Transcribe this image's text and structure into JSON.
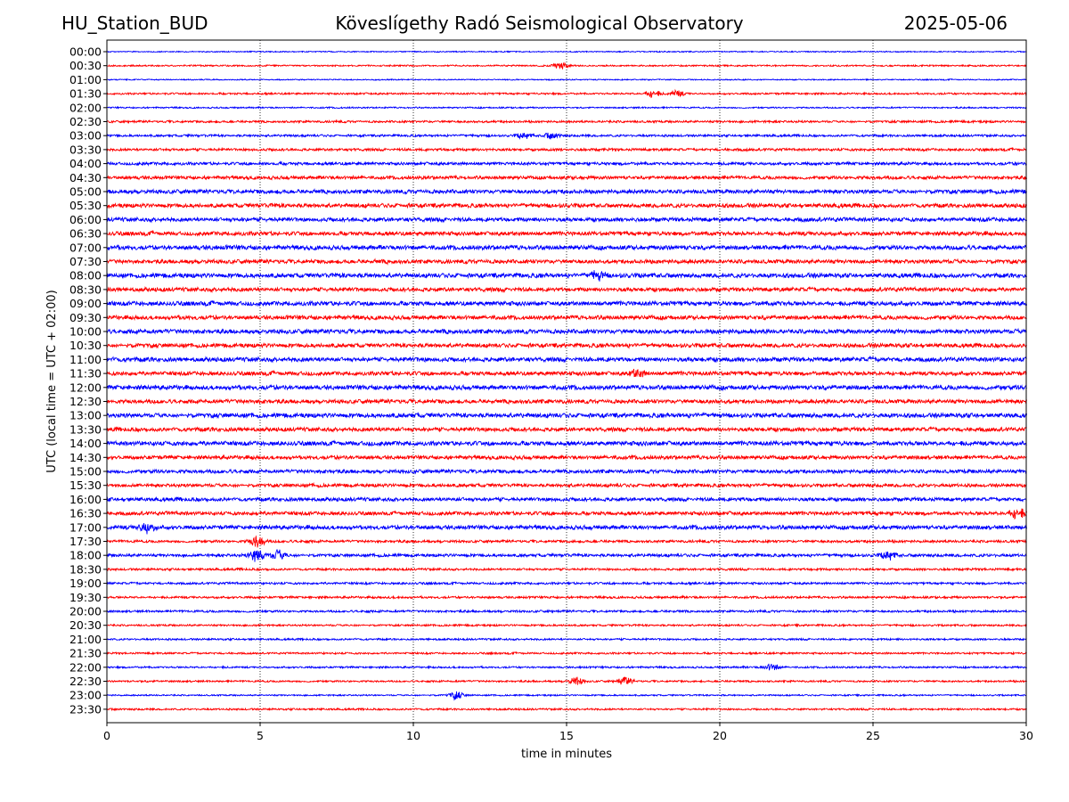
{
  "header": {
    "station": "HU_Station_BUD",
    "title": "Köveslígethy Radó Seismological Observatory",
    "date": "2025-05-06"
  },
  "chart_data": {
    "type": "line",
    "xlabel": "time in minutes",
    "ylabel": "UTC (local time = UTC + 02:00)",
    "xlim": [
      0,
      30
    ],
    "xticks": [
      0,
      5,
      10,
      15,
      20,
      25,
      30
    ],
    "grid": "vertical dotted lines at x ticks",
    "colors": {
      "even_rows": "#0000ff",
      "odd_rows": "#ff0000"
    },
    "rows": [
      {
        "label": "00:00",
        "color": "#0000ff",
        "amplitude": 0.15
      },
      {
        "label": "00:30",
        "color": "#ff0000",
        "amplitude": 0.2
      },
      {
        "label": "01:00",
        "color": "#0000ff",
        "amplitude": 0.15
      },
      {
        "label": "01:30",
        "color": "#ff0000",
        "amplitude": 0.25
      },
      {
        "label": "02:00",
        "color": "#0000ff",
        "amplitude": 0.2
      },
      {
        "label": "02:30",
        "color": "#ff0000",
        "amplitude": 0.3
      },
      {
        "label": "03:00",
        "color": "#0000ff",
        "amplitude": 0.3
      },
      {
        "label": "03:30",
        "color": "#ff0000",
        "amplitude": 0.35
      },
      {
        "label": "04:00",
        "color": "#0000ff",
        "amplitude": 0.4
      },
      {
        "label": "04:30",
        "color": "#ff0000",
        "amplitude": 0.45
      },
      {
        "label": "05:00",
        "color": "#0000ff",
        "amplitude": 0.55
      },
      {
        "label": "05:30",
        "color": "#ff0000",
        "amplitude": 0.55
      },
      {
        "label": "06:00",
        "color": "#0000ff",
        "amplitude": 0.55
      },
      {
        "label": "06:30",
        "color": "#ff0000",
        "amplitude": 0.55
      },
      {
        "label": "07:00",
        "color": "#0000ff",
        "amplitude": 0.6
      },
      {
        "label": "07:30",
        "color": "#ff0000",
        "amplitude": 0.55
      },
      {
        "label": "08:00",
        "color": "#0000ff",
        "amplitude": 0.6
      },
      {
        "label": "08:30",
        "color": "#ff0000",
        "amplitude": 0.55
      },
      {
        "label": "09:00",
        "color": "#0000ff",
        "amplitude": 0.6
      },
      {
        "label": "09:30",
        "color": "#ff0000",
        "amplitude": 0.55
      },
      {
        "label": "10:00",
        "color": "#0000ff",
        "amplitude": 0.6
      },
      {
        "label": "10:30",
        "color": "#ff0000",
        "amplitude": 0.55
      },
      {
        "label": "11:00",
        "color": "#0000ff",
        "amplitude": 0.6
      },
      {
        "label": "11:30",
        "color": "#ff0000",
        "amplitude": 0.55
      },
      {
        "label": "12:00",
        "color": "#0000ff",
        "amplitude": 0.6
      },
      {
        "label": "12:30",
        "color": "#ff0000",
        "amplitude": 0.55
      },
      {
        "label": "13:00",
        "color": "#0000ff",
        "amplitude": 0.6
      },
      {
        "label": "13:30",
        "color": "#ff0000",
        "amplitude": 0.55
      },
      {
        "label": "14:00",
        "color": "#0000ff",
        "amplitude": 0.6
      },
      {
        "label": "14:30",
        "color": "#ff0000",
        "amplitude": 0.5
      },
      {
        "label": "15:00",
        "color": "#0000ff",
        "amplitude": 0.5
      },
      {
        "label": "15:30",
        "color": "#ff0000",
        "amplitude": 0.45
      },
      {
        "label": "16:00",
        "color": "#0000ff",
        "amplitude": 0.5
      },
      {
        "label": "16:30",
        "color": "#ff0000",
        "amplitude": 0.5
      },
      {
        "label": "17:00",
        "color": "#0000ff",
        "amplitude": 0.55
      },
      {
        "label": "17:30",
        "color": "#ff0000",
        "amplitude": 0.35
      },
      {
        "label": "18:00",
        "color": "#0000ff",
        "amplitude": 0.4
      },
      {
        "label": "18:30",
        "color": "#ff0000",
        "amplitude": 0.3
      },
      {
        "label": "19:00",
        "color": "#0000ff",
        "amplitude": 0.3
      },
      {
        "label": "19:30",
        "color": "#ff0000",
        "amplitude": 0.3
      },
      {
        "label": "20:00",
        "color": "#0000ff",
        "amplitude": 0.3
      },
      {
        "label": "20:30",
        "color": "#ff0000",
        "amplitude": 0.25
      },
      {
        "label": "21:00",
        "color": "#0000ff",
        "amplitude": 0.25
      },
      {
        "label": "21:30",
        "color": "#ff0000",
        "amplitude": 0.25
      },
      {
        "label": "22:00",
        "color": "#0000ff",
        "amplitude": 0.25
      },
      {
        "label": "22:30",
        "color": "#ff0000",
        "amplitude": 0.25
      },
      {
        "label": "23:00",
        "color": "#0000ff",
        "amplitude": 0.2
      },
      {
        "label": "23:30",
        "color": "#ff0000",
        "amplitude": 0.25
      }
    ],
    "events": [
      {
        "row": "00:30",
        "x": 14.8,
        "amp": 0.9
      },
      {
        "row": "01:30",
        "x": 17.8,
        "amp": 0.9
      },
      {
        "row": "01:30",
        "x": 18.6,
        "amp": 0.8
      },
      {
        "row": "03:00",
        "x": 13.6,
        "amp": 0.8
      },
      {
        "row": "03:00",
        "x": 14.5,
        "amp": 0.8
      },
      {
        "row": "08:00",
        "x": 16.0,
        "amp": 1.2
      },
      {
        "row": "11:30",
        "x": 17.3,
        "amp": 1.1
      },
      {
        "row": "16:30",
        "x": 29.7,
        "amp": 1.3
      },
      {
        "row": "17:00",
        "x": 1.3,
        "amp": 1.2
      },
      {
        "row": "17:30",
        "x": 4.9,
        "amp": 1.6
      },
      {
        "row": "18:00",
        "x": 4.9,
        "amp": 1.9
      },
      {
        "row": "18:00",
        "x": 5.6,
        "amp": 1.1
      },
      {
        "row": "18:00",
        "x": 25.5,
        "amp": 1.2
      },
      {
        "row": "22:00",
        "x": 21.7,
        "amp": 0.9
      },
      {
        "row": "22:30",
        "x": 15.3,
        "amp": 1.0
      },
      {
        "row": "22:30",
        "x": 16.9,
        "amp": 1.0
      },
      {
        "row": "23:00",
        "x": 11.4,
        "amp": 1.0
      }
    ]
  }
}
